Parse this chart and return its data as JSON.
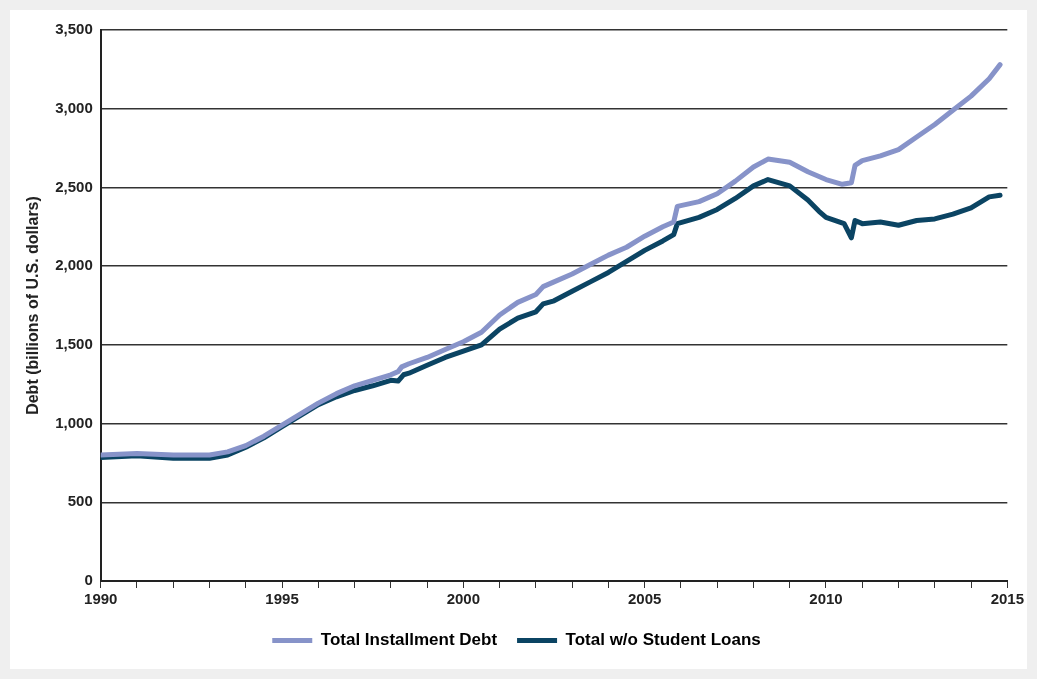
{
  "chart_data": {
    "type": "line",
    "ylabel": "Debt (billions of U.S. dollars)",
    "xlim": [
      1990,
      2015
    ],
    "xticks": [
      1990,
      {
        "value": 1991,
        "label": null
      },
      {
        "value": 1992,
        "label": null
      },
      {
        "value": 1993,
        "label": null
      },
      {
        "value": 1994,
        "label": null
      },
      1995,
      {
        "value": 1996,
        "label": null
      },
      {
        "value": 1997,
        "label": null
      },
      {
        "value": 1998,
        "label": null
      },
      {
        "value": 1999,
        "label": null
      },
      2000,
      {
        "value": 2001,
        "label": null
      },
      {
        "value": 2002,
        "label": null
      },
      {
        "value": 2003,
        "label": null
      },
      {
        "value": 2004,
        "label": null
      },
      2005,
      {
        "value": 2006,
        "label": null
      },
      {
        "value": 2007,
        "label": null
      },
      {
        "value": 2008,
        "label": null
      },
      {
        "value": 2009,
        "label": null
      },
      2010,
      {
        "value": 2011,
        "label": null
      },
      {
        "value": 2012,
        "label": null
      },
      {
        "value": 2013,
        "label": null
      },
      {
        "value": 2014,
        "label": null
      },
      2015
    ],
    "ylim": [
      0,
      3500
    ],
    "yticks": [
      0,
      500,
      {
        "value": 1000,
        "label": "1,000"
      },
      {
        "value": 1500,
        "label": "1,500"
      },
      {
        "value": 2000,
        "label": "2,000"
      },
      {
        "value": 2500,
        "label": "2,500"
      },
      {
        "value": 3000,
        "label": "3,000"
      },
      {
        "value": 3500,
        "label": "3,500"
      }
    ],
    "grid": "y",
    "legend": "bottom",
    "marker": "none",
    "line_style": "solid",
    "series": [
      {
        "name": "Total Installment Debt",
        "color": "#8793c9",
        "x": [
          1990,
          1991,
          1992,
          1993,
          1993.5,
          1994,
          1994.5,
          1995,
          1995.5,
          1996,
          1996.5,
          1997,
          1997.5,
          1998,
          1998.2,
          1998.3,
          1998.5,
          1999,
          1999.5,
          2000,
          2000.5,
          2001,
          2001.5,
          2002,
          2002.2,
          2002.5,
          2003,
          2003.5,
          2004,
          2004.5,
          2005,
          2005.5,
          2005.8,
          2005.9,
          2006.5,
          2007,
          2007.5,
          2008,
          2008.4,
          2009,
          2009.5,
          2010,
          2010.45,
          2010.7,
          2010.8,
          2011,
          2011.5,
          2012,
          2012.5,
          2013,
          2013.5,
          2014,
          2014.5,
          2014.8
        ],
        "values": [
          800,
          810,
          800,
          800,
          820,
          860,
          920,
          990,
          1060,
          1130,
          1190,
          1240,
          1275,
          1310,
          1330,
          1360,
          1380,
          1420,
          1470,
          1520,
          1580,
          1690,
          1770,
          1820,
          1870,
          1900,
          1950,
          2010,
          2070,
          2120,
          2190,
          2250,
          2280,
          2380,
          2410,
          2460,
          2540,
          2630,
          2680,
          2660,
          2600,
          2550,
          2520,
          2530,
          2640,
          2670,
          2700,
          2740,
          2820,
          2900,
          2990,
          3080,
          3190,
          3280
        ]
      },
      {
        "name": "Total w/o Student Loans",
        "color": "#0b4463",
        "x": [
          1990,
          1991,
          1992,
          1993,
          1993.5,
          1994,
          1994.5,
          1995,
          1995.5,
          1996,
          1996.5,
          1997,
          1997.5,
          1998,
          1998.2,
          1998.35,
          1998.5,
          1999,
          1999.5,
          2000,
          2000.5,
          2001,
          2001.5,
          2002,
          2002.2,
          2002.5,
          2003,
          2003.5,
          2004,
          2004.5,
          2005,
          2005.5,
          2005.8,
          2005.9,
          2006.5,
          2007,
          2007.5,
          2008,
          2008.4,
          2009,
          2009.5,
          2009.8,
          2010,
          2010.5,
          2010.7,
          2010.8,
          2011,
          2011.5,
          2012,
          2012.5,
          2013,
          2013.5,
          2014,
          2014.5,
          2014.8
        ],
        "values": [
          785,
          795,
          780,
          780,
          800,
          850,
          910,
          980,
          1050,
          1120,
          1170,
          1210,
          1240,
          1275,
          1270,
          1310,
          1320,
          1370,
          1420,
          1460,
          1500,
          1600,
          1670,
          1710,
          1760,
          1780,
          1840,
          1900,
          1960,
          2030,
          2100,
          2160,
          2200,
          2270,
          2310,
          2360,
          2430,
          2510,
          2550,
          2510,
          2420,
          2350,
          2310,
          2270,
          2180,
          2290,
          2270,
          2280,
          2260,
          2290,
          2300,
          2330,
          2370,
          2440,
          2450
        ]
      }
    ]
  }
}
